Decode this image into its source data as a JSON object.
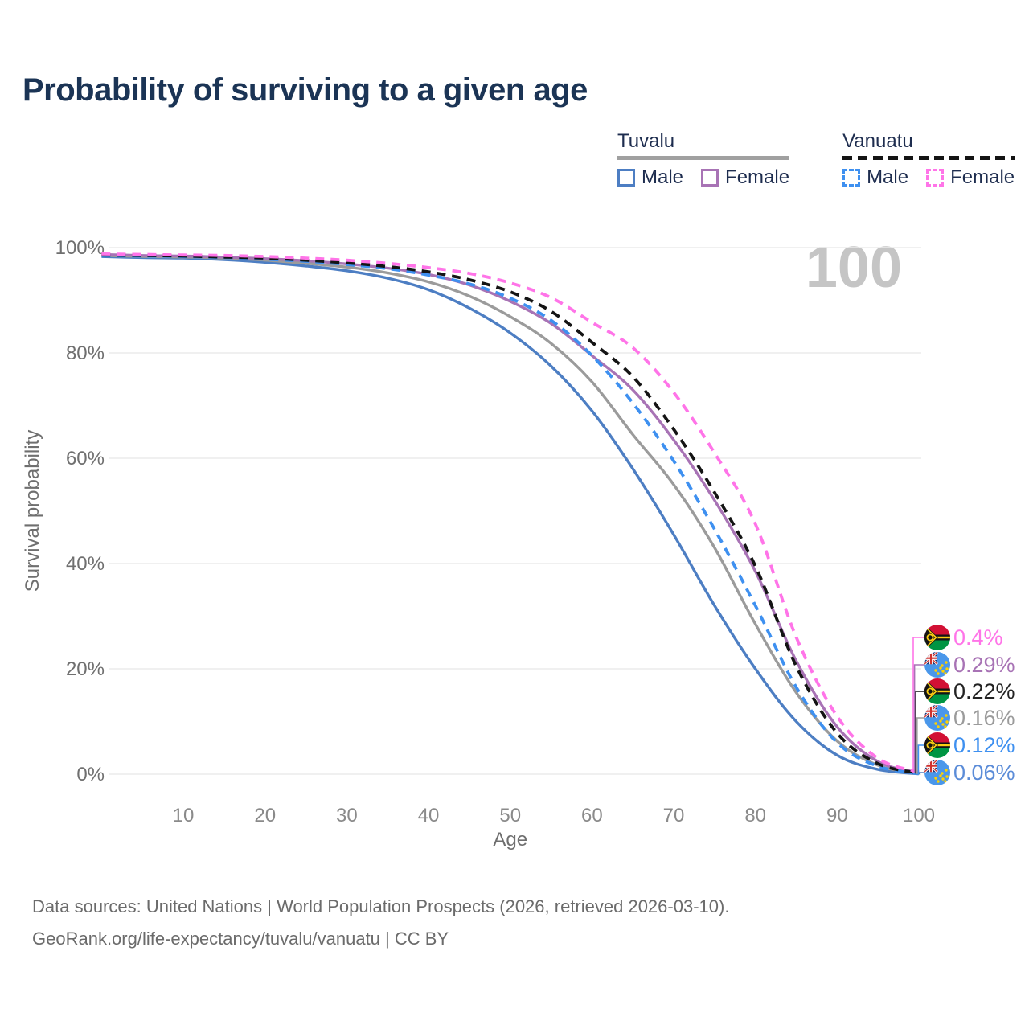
{
  "title": "Probability of surviving to a given age",
  "watermark": "100",
  "legend": {
    "groups": [
      {
        "name": "Tuvalu",
        "line_style": "solid",
        "underline_color": "#a0a0a0",
        "items": [
          {
            "label": "Male",
            "color": "#4d7ec3"
          },
          {
            "label": "Female",
            "color": "#a873b5"
          }
        ]
      },
      {
        "name": "Vanuatu",
        "line_style": "dashed",
        "underline_color": "#141414",
        "items": [
          {
            "label": "Male",
            "color": "#3e90f0"
          },
          {
            "label": "Female",
            "color": "#ff74e8"
          }
        ]
      }
    ]
  },
  "chart_data": {
    "type": "line",
    "title": "Probability of surviving to a given age",
    "xlabel": "Age",
    "ylabel": "Survival probability",
    "xlim": [
      0,
      100
    ],
    "ylim": [
      0,
      100
    ],
    "grid": "horizontal-only",
    "x_ticks": [
      10,
      20,
      30,
      40,
      50,
      60,
      70,
      80,
      90,
      100
    ],
    "y_ticks": [
      "0%",
      "20%",
      "40%",
      "60%",
      "80%",
      "100%"
    ],
    "x": [
      0,
      5,
      10,
      15,
      20,
      25,
      30,
      35,
      40,
      45,
      50,
      55,
      60,
      65,
      70,
      75,
      80,
      85,
      90,
      95,
      100
    ],
    "series": [
      {
        "name": "Tuvalu Male",
        "country": "tuvalu",
        "sex": "male",
        "color": "#4d7ec3",
        "dash": "solid",
        "values": [
          98.3,
          98.1,
          98.0,
          97.7,
          97.2,
          96.5,
          95.6,
          94.2,
          92.0,
          88.5,
          83.8,
          77.5,
          69.0,
          58.0,
          45.5,
          32.0,
          20.0,
          10.0,
          3.6,
          0.9,
          0.06
        ]
      },
      {
        "name": "Tuvalu Both sexes",
        "country": "tuvalu",
        "sex": "all",
        "color": "#9b9b9b",
        "dash": "solid",
        "values": [
          98.5,
          98.3,
          98.2,
          98.0,
          97.6,
          97.0,
          96.3,
          95.2,
          93.5,
          90.8,
          86.9,
          81.8,
          74.5,
          64.5,
          55.0,
          43.0,
          28.5,
          15.5,
          6.3,
          1.7,
          0.16
        ]
      },
      {
        "name": "Tuvalu Female",
        "country": "tuvalu",
        "sex": "female",
        "color": "#a873b5",
        "dash": "solid",
        "values": [
          98.7,
          98.5,
          98.4,
          98.2,
          97.9,
          97.5,
          96.9,
          96.1,
          94.9,
          92.9,
          89.8,
          85.6,
          79.5,
          73.0,
          63.5,
          52.0,
          38.5,
          21.5,
          9.0,
          2.4,
          0.29
        ]
      },
      {
        "name": "Vanuatu Male",
        "country": "vanuatu",
        "sex": "male",
        "color": "#3e90f0",
        "dash": "dashed",
        "values": [
          98.5,
          98.4,
          98.3,
          98.1,
          97.8,
          97.4,
          96.8,
          96.0,
          94.8,
          93.1,
          90.4,
          86.2,
          79.5,
          70.5,
          59.5,
          46.5,
          32.0,
          16.5,
          6.0,
          1.5,
          0.12
        ]
      },
      {
        "name": "Vanuatu Both sexes",
        "country": "vanuatu",
        "sex": "all",
        "color": "#141414",
        "dash": "dashed",
        "values": [
          98.6,
          98.5,
          98.4,
          98.2,
          98.0,
          97.6,
          97.1,
          96.4,
          95.4,
          93.9,
          91.6,
          87.9,
          82.0,
          75.5,
          65.5,
          53.5,
          39.5,
          20.5,
          7.8,
          2.0,
          0.22
        ]
      },
      {
        "name": "Vanuatu Female",
        "country": "vanuatu",
        "sex": "female",
        "color": "#ff74e8",
        "dash": "dashed",
        "values": [
          98.8,
          98.7,
          98.6,
          98.5,
          98.3,
          98.0,
          97.6,
          97.0,
          96.2,
          95.1,
          93.3,
          90.5,
          85.8,
          81.0,
          72.5,
          61.0,
          47.5,
          26.0,
          11.0,
          3.0,
          0.4
        ]
      }
    ],
    "end_labels": [
      {
        "text": "0.4%",
        "flag": "vanuatu",
        "color": "#ff74e8",
        "series": "Vanuatu Female"
      },
      {
        "text": "0.29%",
        "flag": "tuvalu",
        "color": "#a873b5",
        "series": "Tuvalu Female"
      },
      {
        "text": "0.22%",
        "flag": "vanuatu",
        "color": "#222222",
        "series": "Vanuatu Both sexes"
      },
      {
        "text": "0.16%",
        "flag": "tuvalu",
        "color": "#9b9b9b",
        "series": "Tuvalu Both sexes"
      },
      {
        "text": "0.12%",
        "flag": "vanuatu",
        "color": "#3e90f0",
        "series": "Vanuatu Male"
      },
      {
        "text": "0.06%",
        "flag": "tuvalu",
        "color": "#5b8cd8",
        "series": "Tuvalu Male"
      }
    ]
  },
  "footer": {
    "line1": "Data sources: United Nations | World Population Prospects (2026, retrieved 2026-03-10).",
    "line2": "GeoRank.org/life-expectancy/tuvalu/vanuatu | CC BY"
  }
}
